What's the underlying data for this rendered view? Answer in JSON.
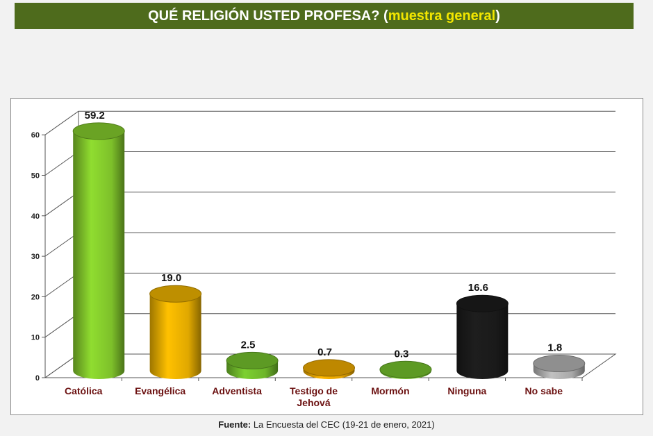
{
  "header": {
    "title_main": "QUÉ RELIGIÓN USTED PROFESA? (",
    "title_highlight": "muestra general",
    "title_close": ")"
  },
  "chart_data": {
    "type": "bar",
    "categories": [
      "Católica",
      "Evangélica",
      "Adventista",
      "Testigo de Jehová",
      "Mormón",
      "Ninguna",
      "No sabe"
    ],
    "values": [
      59.2,
      19.0,
      2.5,
      0.7,
      0.3,
      16.6,
      1.8
    ],
    "value_labels": [
      "59.2",
      "19.0",
      "2.5",
      "0.7",
      "0.3",
      "16.6",
      "1.8"
    ],
    "colors": [
      "#7dc02a",
      "#e0a800",
      "#6db52a",
      "#e0a000",
      "#6db52a",
      "#1a1a1a",
      "#a8a8a8"
    ],
    "yticks": [
      "0",
      "10",
      "20",
      "30",
      "40",
      "50",
      "60"
    ],
    "ylim": [
      0,
      60
    ],
    "grid": true,
    "title": "QUÉ RELIGIÓN USTED PROFESA? (muestra general)"
  },
  "footer": {
    "source_label": "Fuente:",
    "source_text": " La Encuesta del CEC (19-21 de enero, 2021)"
  }
}
